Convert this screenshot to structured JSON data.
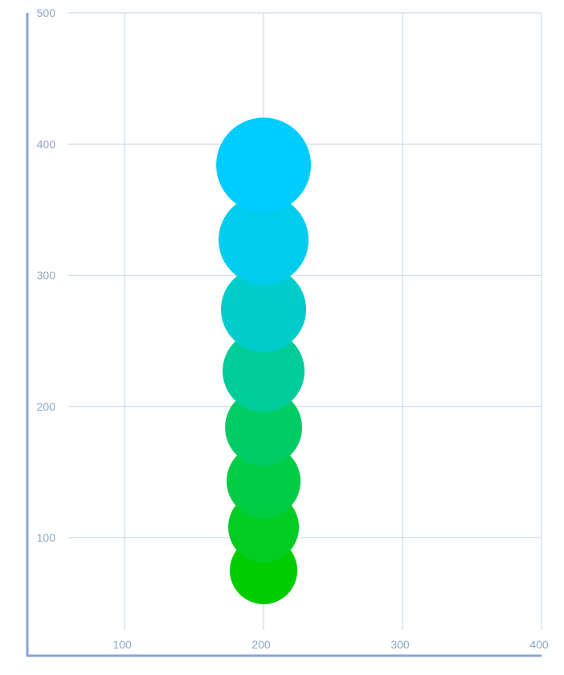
{
  "chart_data": {
    "type": "scatter",
    "title": "",
    "xlabel": "",
    "ylabel": "",
    "xlim": [
      30,
      400
    ],
    "ylim": [
      10,
      500
    ],
    "x_ticks": [
      100,
      200,
      300,
      400
    ],
    "y_ticks": [
      100,
      200,
      300,
      400,
      500
    ],
    "grid": true,
    "legend": "none",
    "series": [
      {
        "points": [
          {
            "x": 200,
            "y": 75,
            "r": 42,
            "color": "#00cc00"
          },
          {
            "x": 200,
            "y": 108,
            "r": 44,
            "color": "#00cc22"
          },
          {
            "x": 200,
            "y": 143,
            "r": 46,
            "color": "#00cc44"
          },
          {
            "x": 200,
            "y": 184,
            "r": 48,
            "color": "#00cc66"
          },
          {
            "x": 200,
            "y": 227,
            "r": 51,
            "color": "#00cc99"
          },
          {
            "x": 200,
            "y": 274,
            "r": 53,
            "color": "#00cccc"
          },
          {
            "x": 200,
            "y": 327,
            "r": 56,
            "color": "#00ccee"
          },
          {
            "x": 200,
            "y": 384,
            "r": 59,
            "color": "#00ccff"
          }
        ]
      }
    ]
  },
  "colors": {
    "grid": "#c5d3e6",
    "axis": "#88a4d8",
    "tick_label": "#8ea6c8"
  }
}
